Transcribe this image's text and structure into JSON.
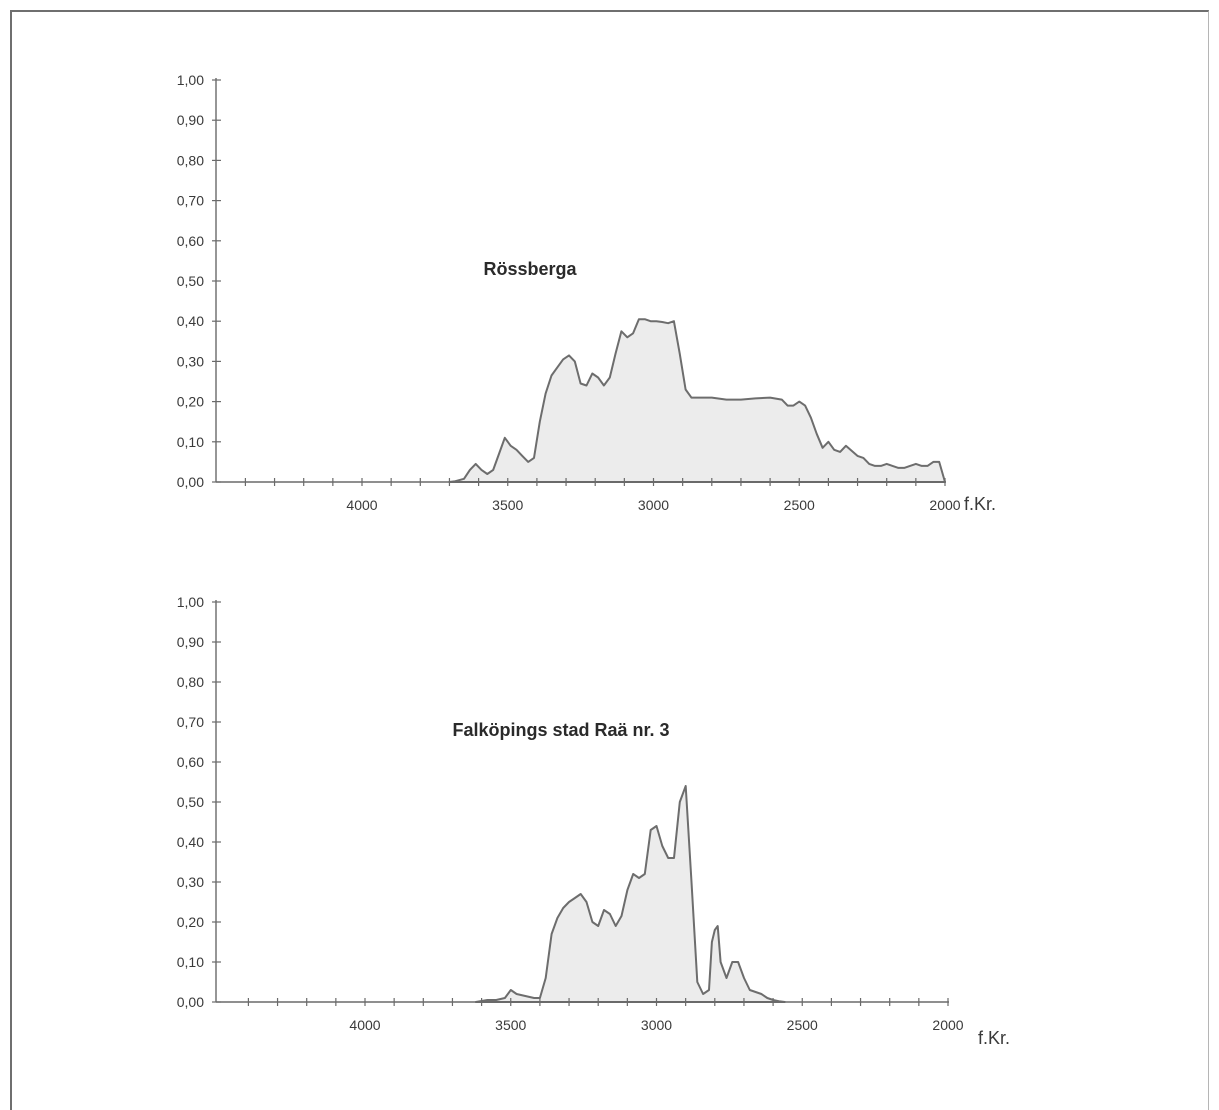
{
  "chart_data": [
    {
      "type": "area",
      "title": "Rössberga",
      "unit": "f.Kr.",
      "x_direction": "descending",
      "xlim": [
        4500,
        2000
      ],
      "ylim": [
        0,
        1
      ],
      "x_ticks": [
        {
          "value": 4000,
          "label": "4000"
        },
        {
          "value": 3500,
          "label": "3500"
        },
        {
          "value": 3000,
          "label": "3000"
        },
        {
          "value": 2500,
          "label": "2500"
        },
        {
          "value": 2000,
          "label": "2000"
        }
      ],
      "y_ticks": [
        {
          "value": 0,
          "label": "0,00"
        },
        {
          "value": 0.1,
          "label": "0,10"
        },
        {
          "value": 0.2,
          "label": "0,20"
        },
        {
          "value": 0.3,
          "label": "0,30"
        },
        {
          "value": 0.4,
          "label": "0,40"
        },
        {
          "value": 0.5,
          "label": "0,50"
        },
        {
          "value": 0.6,
          "label": "0,60"
        },
        {
          "value": 0.7,
          "label": "0,70"
        },
        {
          "value": 0.8,
          "label": "0,80"
        },
        {
          "value": 0.9,
          "label": "0,90"
        },
        {
          "value": 1.0,
          "label": "1,00"
        }
      ],
      "minor_tick_step": 100,
      "x": [
        3700,
        3680,
        3650,
        3630,
        3610,
        3590,
        3570,
        3550,
        3530,
        3510,
        3490,
        3470,
        3450,
        3430,
        3410,
        3390,
        3370,
        3350,
        3330,
        3310,
        3290,
        3270,
        3250,
        3230,
        3210,
        3190,
        3170,
        3150,
        3130,
        3110,
        3090,
        3070,
        3050,
        3030,
        3010,
        2990,
        2970,
        2950,
        2930,
        2910,
        2890,
        2870,
        2850,
        2800,
        2750,
        2700,
        2650,
        2600,
        2560,
        2540,
        2520,
        2500,
        2480,
        2460,
        2440,
        2420,
        2400,
        2380,
        2360,
        2340,
        2300,
        2280,
        2260,
        2240,
        2220,
        2200,
        2180,
        2160,
        2140,
        2120,
        2100,
        2080,
        2060,
        2040,
        2020,
        2000
      ],
      "y": [
        0,
        0.002,
        0.008,
        0.03,
        0.045,
        0.03,
        0.02,
        0.03,
        0.07,
        0.11,
        0.09,
        0.08,
        0.065,
        0.05,
        0.06,
        0.15,
        0.22,
        0.265,
        0.285,
        0.305,
        0.315,
        0.3,
        0.245,
        0.24,
        0.27,
        0.26,
        0.24,
        0.26,
        0.32,
        0.375,
        0.36,
        0.37,
        0.405,
        0.405,
        0.4,
        0.4,
        0.398,
        0.395,
        0.4,
        0.32,
        0.23,
        0.21,
        0.21,
        0.21,
        0.205,
        0.205,
        0.208,
        0.21,
        0.205,
        0.19,
        0.19,
        0.2,
        0.19,
        0.16,
        0.12,
        0.085,
        0.1,
        0.08,
        0.075,
        0.09,
        0.065,
        0.06,
        0.045,
        0.04,
        0.04,
        0.045,
        0.04,
        0.035,
        0.035,
        0.04,
        0.045,
        0.04,
        0.04,
        0.05,
        0.05,
        0
      ]
    },
    {
      "type": "area",
      "title": "Falköpings stad Raä nr. 3",
      "unit": "f.Kr.",
      "x_direction": "descending",
      "xlim": [
        4500,
        2000
      ],
      "ylim": [
        0,
        1
      ],
      "x_ticks": [
        {
          "value": 4000,
          "label": "4000"
        },
        {
          "value": 3500,
          "label": "3500"
        },
        {
          "value": 3000,
          "label": "3000"
        },
        {
          "value": 2500,
          "label": "2500"
        },
        {
          "value": 2000,
          "label": "2000"
        }
      ],
      "y_ticks": [
        {
          "value": 0,
          "label": "0,00"
        },
        {
          "value": 0.1,
          "label": "0,10"
        },
        {
          "value": 0.2,
          "label": "0,20"
        },
        {
          "value": 0.3,
          "label": "0,30"
        },
        {
          "value": 0.4,
          "label": "0,40"
        },
        {
          "value": 0.5,
          "label": "0,50"
        },
        {
          "value": 0.6,
          "label": "0,60"
        },
        {
          "value": 0.7,
          "label": "0,70"
        },
        {
          "value": 0.8,
          "label": "0,80"
        },
        {
          "value": 0.9,
          "label": "0,90"
        },
        {
          "value": 1.0,
          "label": "1,00"
        }
      ],
      "minor_tick_step": 100,
      "x": [
        3620,
        3580,
        3550,
        3520,
        3500,
        3480,
        3450,
        3420,
        3400,
        3380,
        3360,
        3340,
        3320,
        3300,
        3280,
        3260,
        3240,
        3220,
        3200,
        3180,
        3160,
        3140,
        3120,
        3100,
        3080,
        3060,
        3040,
        3020,
        3000,
        2980,
        2960,
        2940,
        2920,
        2900,
        2880,
        2860,
        2840,
        2820,
        2810,
        2800,
        2790,
        2780,
        2760,
        2740,
        2720,
        2700,
        2680,
        2660,
        2640,
        2620,
        2600,
        2580,
        2560
      ],
      "y": [
        0,
        0.005,
        0.005,
        0.01,
        0.03,
        0.02,
        0.015,
        0.01,
        0.01,
        0.06,
        0.17,
        0.21,
        0.235,
        0.25,
        0.26,
        0.27,
        0.25,
        0.2,
        0.19,
        0.23,
        0.22,
        0.19,
        0.215,
        0.28,
        0.32,
        0.31,
        0.32,
        0.43,
        0.44,
        0.39,
        0.36,
        0.36,
        0.5,
        0.54,
        0.3,
        0.05,
        0.02,
        0.03,
        0.15,
        0.18,
        0.19,
        0.1,
        0.06,
        0.1,
        0.1,
        0.06,
        0.03,
        0.025,
        0.02,
        0.01,
        0.005,
        0.002,
        0
      ]
    }
  ]
}
